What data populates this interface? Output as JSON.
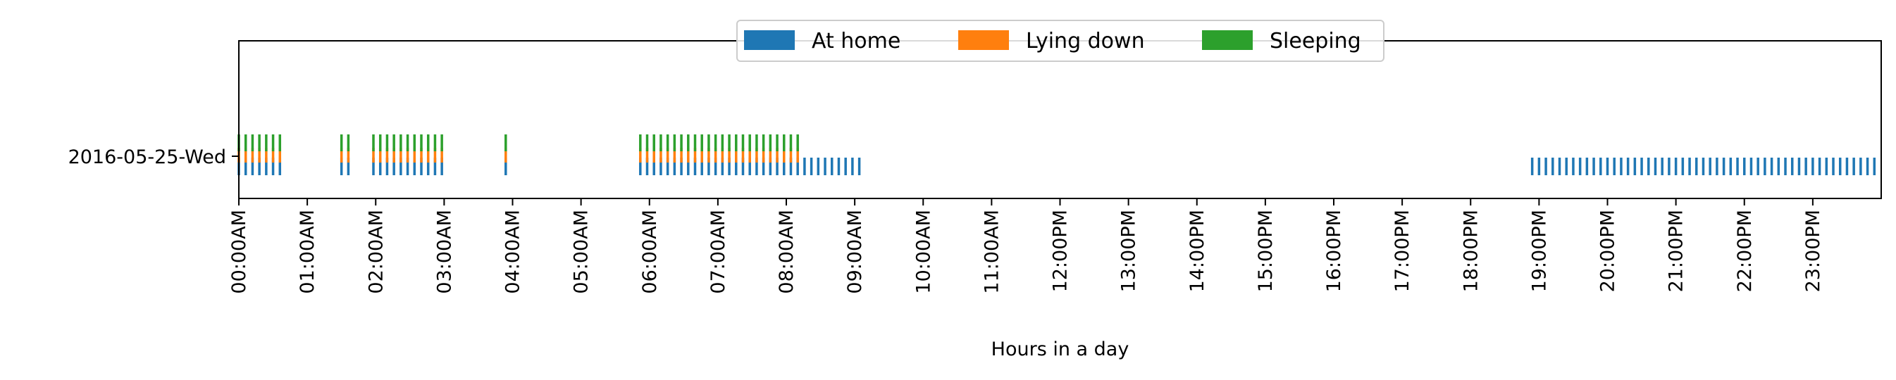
{
  "chart_data": {
    "type": "bar",
    "xlabel": "Hours in a day",
    "ylabel": "",
    "title": "",
    "y_categories": [
      "2016-05-25-Wed"
    ],
    "x_range_minutes": [
      0,
      1440
    ],
    "x_tick_labels": [
      "00:00AM",
      "01:00AM",
      "02:00AM",
      "03:00AM",
      "04:00AM",
      "05:00AM",
      "06:00AM",
      "07:00AM",
      "08:00AM",
      "09:00AM",
      "10:00AM",
      "11:00AM",
      "12:00PM",
      "13:00PM",
      "14:00PM",
      "15:00PM",
      "16:00PM",
      "17:00PM",
      "18:00PM",
      "19:00PM",
      "20:00PM",
      "21:00PM",
      "22:00PM",
      "23:00PM"
    ],
    "legend_position": "top-center",
    "legend_entries": [
      "At home",
      "Lying down",
      "Sleeping"
    ],
    "grid": false,
    "sample_interval_minutes": 6,
    "series": [
      {
        "name": "At home",
        "color": "#1f77b4",
        "intervals": [
          [
            "00:00AM",
            "00:36AM"
          ],
          [
            "01:30AM",
            "01:36AM"
          ],
          [
            "01:58AM",
            "03:00AM"
          ],
          [
            "03:54AM",
            "03:58AM"
          ],
          [
            "05:52AM",
            "06:04AM"
          ],
          [
            "06:10AM",
            "09:06AM"
          ],
          [
            "18:54PM",
            "24:00"
          ]
        ]
      },
      {
        "name": "Lying down",
        "color": "#ff7f0e",
        "intervals": [
          [
            "00:00AM",
            "00:36AM"
          ],
          [
            "01:30AM",
            "01:36AM"
          ],
          [
            "01:58AM",
            "03:00AM"
          ],
          [
            "03:54AM",
            "03:58AM"
          ],
          [
            "05:52AM",
            "06:04AM"
          ],
          [
            "06:10AM",
            "08:10AM"
          ]
        ]
      },
      {
        "name": "Sleeping",
        "color": "#2ca02c",
        "intervals": [
          [
            "00:00AM",
            "00:36AM"
          ],
          [
            "01:30AM",
            "01:36AM"
          ],
          [
            "01:58AM",
            "03:00AM"
          ],
          [
            "03:54AM",
            "03:58AM"
          ],
          [
            "05:52AM",
            "06:04AM"
          ],
          [
            "06:10AM",
            "08:10AM"
          ]
        ]
      }
    ]
  }
}
